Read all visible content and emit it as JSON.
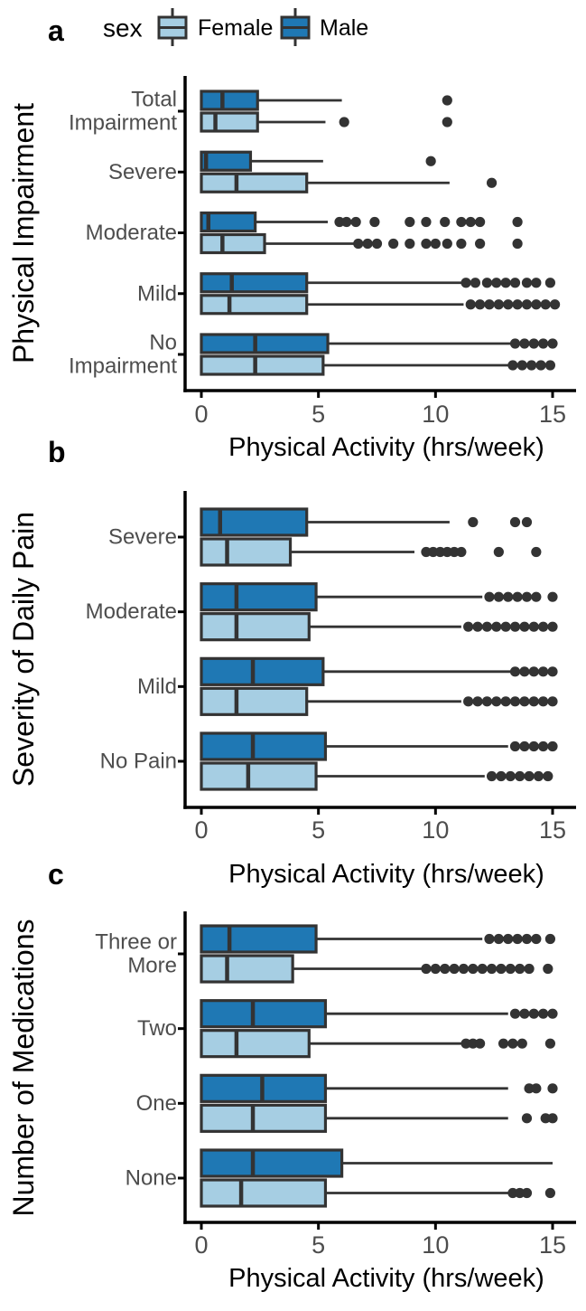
{
  "figure": {
    "legend": {
      "title": "sex",
      "entries": [
        {
          "label": "Female",
          "color": "#a6cee3"
        },
        {
          "label": "Male",
          "color": "#1f78b4"
        }
      ]
    },
    "styles": {
      "box_outline_color": "#333333",
      "outlier_color": "#333333",
      "axis_color": "#000000",
      "tick_label_color": "#4d4d4d",
      "category_label_color": "#4d4d4d",
      "title_color": "#000000"
    }
  },
  "chart_data": [
    {
      "type": "boxplot",
      "orientation": "horizontal",
      "panel_label": "a",
      "xlabel": "Physical Activity (hrs/week)",
      "ylabel": "Physical Impairment",
      "xlim": [
        0,
        15
      ],
      "x_ticks": [
        "0",
        "5",
        "10",
        "15"
      ],
      "x_tick_values": [
        0,
        5,
        10,
        15
      ],
      "legend_position": "top",
      "grid": false,
      "categories": [
        {
          "label": "Total Impairment",
          "label_lines": [
            "Total",
            "Impairment"
          ],
          "male": {
            "whisker_low": 0,
            "q1": 0,
            "median": 0.9,
            "q3": 2.4,
            "whisker_high": 6.0,
            "outliers": [
              10.5
            ]
          },
          "female": {
            "whisker_low": 0,
            "q1": 0,
            "median": 0.6,
            "q3": 2.4,
            "whisker_high": 5.3,
            "outliers": [
              6.1,
              10.5
            ]
          }
        },
        {
          "label": "Severe",
          "label_lines": [
            "Severe"
          ],
          "male": {
            "whisker_low": 0,
            "q1": 0,
            "median": 0.2,
            "q3": 2.1,
            "whisker_high": 5.2,
            "outliers": [
              9.8
            ]
          },
          "female": {
            "whisker_low": 0,
            "q1": 0,
            "median": 1.5,
            "q3": 4.5,
            "whisker_high": 10.6,
            "outliers": [
              12.4
            ]
          }
        },
        {
          "label": "Moderate",
          "label_lines": [
            "Moderate"
          ],
          "male": {
            "whisker_low": 0,
            "q1": 0,
            "median": 0.3,
            "q3": 2.3,
            "whisker_high": 5.4,
            "outliers": [
              5.9,
              6.2,
              6.6,
              7.4,
              8.9,
              9.6,
              10.4,
              11.1,
              11.5,
              11.9,
              13.5
            ]
          },
          "female": {
            "whisker_low": 0,
            "q1": 0,
            "median": 0.9,
            "q3": 2.7,
            "whisker_high": 6.5,
            "outliers": [
              6.7,
              7.1,
              7.5,
              8.2,
              8.9,
              9.6,
              10.0,
              10.5,
              11.1,
              11.9,
              13.5
            ]
          }
        },
        {
          "label": "Mild",
          "label_lines": [
            "Mild"
          ],
          "male": {
            "whisker_low": 0,
            "q1": 0,
            "median": 1.3,
            "q3": 4.5,
            "whisker_high": 11.1,
            "outliers": [
              11.3,
              11.7,
              12.2,
              12.6,
              13.0,
              13.4,
              13.9,
              14.3,
              14.9
            ]
          },
          "female": {
            "whisker_low": 0,
            "q1": 0,
            "median": 1.2,
            "q3": 4.5,
            "whisker_high": 11.2,
            "outliers": [
              11.5,
              11.9,
              12.3,
              12.7,
              13.1,
              13.5,
              13.9,
              14.3,
              14.7,
              15.1
            ]
          }
        },
        {
          "label": "No Impairment",
          "label_lines": [
            "No",
            "Impairment"
          ],
          "male": {
            "whisker_low": 0,
            "q1": 0,
            "median": 2.3,
            "q3": 5.4,
            "whisker_high": 13.2,
            "outliers": [
              13.4,
              13.8,
              14.2,
              14.6,
              15.0
            ]
          },
          "female": {
            "whisker_low": 0,
            "q1": 0,
            "median": 2.3,
            "q3": 5.2,
            "whisker_high": 13.1,
            "outliers": [
              13.3,
              13.7,
              14.1,
              14.5,
              14.9
            ]
          }
        }
      ]
    },
    {
      "type": "boxplot",
      "orientation": "horizontal",
      "panel_label": "b",
      "xlabel": "Physical Activity (hrs/week)",
      "ylabel": "Severity of Daily Pain",
      "xlim": [
        0,
        15
      ],
      "x_ticks": [
        "0",
        "5",
        "10",
        "15"
      ],
      "x_tick_values": [
        0,
        5,
        10,
        15
      ],
      "legend_position": "none",
      "grid": false,
      "categories": [
        {
          "label": "Severe",
          "label_lines": [
            "Severe"
          ],
          "male": {
            "whisker_low": 0,
            "q1": 0,
            "median": 0.8,
            "q3": 4.5,
            "whisker_high": 10.6,
            "outliers": [
              11.6,
              13.4,
              13.9
            ]
          },
          "female": {
            "whisker_low": 0,
            "q1": 0,
            "median": 1.1,
            "q3": 3.8,
            "whisker_high": 9.1,
            "outliers": [
              9.6,
              9.9,
              10.2,
              10.5,
              10.8,
              11.1,
              12.7,
              14.3
            ]
          }
        },
        {
          "label": "Moderate",
          "label_lines": [
            "Moderate"
          ],
          "male": {
            "whisker_low": 0,
            "q1": 0,
            "median": 1.5,
            "q3": 4.9,
            "whisker_high": 12.0,
            "outliers": [
              12.3,
              12.7,
              13.1,
              13.5,
              13.9,
              14.3,
              15.0
            ]
          },
          "female": {
            "whisker_low": 0,
            "q1": 0,
            "median": 1.5,
            "q3": 4.6,
            "whisker_high": 11.1,
            "outliers": [
              11.4,
              11.8,
              12.2,
              12.6,
              13.0,
              13.4,
              13.8,
              14.2,
              14.6,
              15.0
            ]
          }
        },
        {
          "label": "Mild",
          "label_lines": [
            "Mild"
          ],
          "male": {
            "whisker_low": 0,
            "q1": 0,
            "median": 2.2,
            "q3": 5.2,
            "whisker_high": 13.2,
            "outliers": [
              13.4,
              13.8,
              14.2,
              14.6,
              15.0
            ]
          },
          "female": {
            "whisker_low": 0,
            "q1": 0,
            "median": 1.5,
            "q3": 4.5,
            "whisker_high": 11.1,
            "outliers": [
              11.4,
              11.8,
              12.2,
              12.6,
              13.0,
              13.4,
              13.8,
              14.2,
              14.6,
              15.0
            ]
          }
        },
        {
          "label": "No Pain",
          "label_lines": [
            "No Pain"
          ],
          "male": {
            "whisker_low": 0,
            "q1": 0,
            "median": 2.2,
            "q3": 5.3,
            "whisker_high": 13.1,
            "outliers": [
              13.4,
              13.8,
              14.2,
              14.6,
              15.0
            ]
          },
          "female": {
            "whisker_low": 0,
            "q1": 0,
            "median": 2.0,
            "q3": 4.9,
            "whisker_high": 12.1,
            "outliers": [
              12.4,
              12.8,
              13.2,
              13.6,
              14.0,
              14.4,
              14.8
            ]
          }
        }
      ]
    },
    {
      "type": "boxplot",
      "orientation": "horizontal",
      "panel_label": "c",
      "xlabel": "Physical Activity (hrs/week)",
      "ylabel": "Number of Medications",
      "xlim": [
        0,
        15
      ],
      "x_ticks": [
        "0",
        "5",
        "10",
        "15"
      ],
      "x_tick_values": [
        0,
        5,
        10,
        15
      ],
      "legend_position": "none",
      "grid": false,
      "categories": [
        {
          "label": "Three or More",
          "label_lines": [
            "Three or",
            "More"
          ],
          "male": {
            "whisker_low": 0,
            "q1": 0,
            "median": 1.2,
            "q3": 4.9,
            "whisker_high": 12.0,
            "outliers": [
              12.3,
              12.7,
              13.1,
              13.5,
              13.9,
              14.3,
              14.9
            ]
          },
          "female": {
            "whisker_low": 0,
            "q1": 0,
            "median": 1.1,
            "q3": 3.9,
            "whisker_high": 9.4,
            "outliers": [
              9.6,
              10.0,
              10.4,
              10.8,
              11.2,
              11.6,
              12.0,
              12.4,
              12.8,
              13.2,
              13.6,
              14.0,
              14.8
            ]
          }
        },
        {
          "label": "Two",
          "label_lines": [
            "Two"
          ],
          "male": {
            "whisker_low": 0,
            "q1": 0,
            "median": 2.2,
            "q3": 5.3,
            "whisker_high": 13.1,
            "outliers": [
              13.4,
              13.8,
              14.2,
              14.6,
              15.0
            ]
          },
          "female": {
            "whisker_low": 0,
            "q1": 0,
            "median": 1.5,
            "q3": 4.6,
            "whisker_high": 11.1,
            "outliers": [
              11.3,
              11.6,
              11.9,
              12.9,
              13.3,
              13.7,
              14.9
            ]
          }
        },
        {
          "label": "One",
          "label_lines": [
            "One"
          ],
          "male": {
            "whisker_low": 0,
            "q1": 0,
            "median": 2.6,
            "q3": 5.3,
            "whisker_high": 13.1,
            "outliers": [
              14.0,
              14.3,
              15.0
            ]
          },
          "female": {
            "whisker_low": 0,
            "q1": 0,
            "median": 2.2,
            "q3": 5.3,
            "whisker_high": 13.1,
            "outliers": [
              13.9,
              14.7,
              15.0
            ]
          }
        },
        {
          "label": "None",
          "label_lines": [
            "None"
          ],
          "male": {
            "whisker_low": 0,
            "q1": 0,
            "median": 2.2,
            "q3": 6.0,
            "whisker_high": 15.0,
            "outliers": []
          },
          "female": {
            "whisker_low": 0,
            "q1": 0,
            "median": 1.7,
            "q3": 5.3,
            "whisker_high": 13.1,
            "outliers": [
              13.3,
              13.6,
              13.9,
              14.9
            ]
          }
        }
      ]
    }
  ]
}
